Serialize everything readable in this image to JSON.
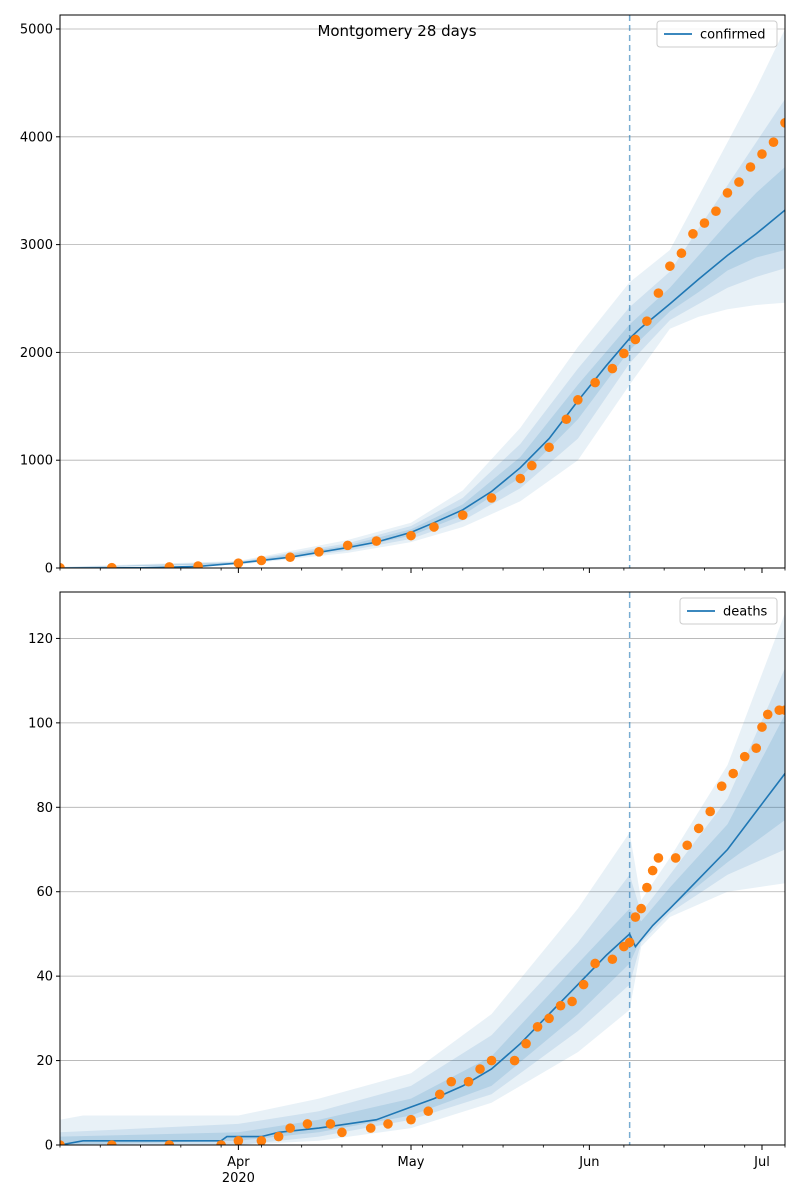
{
  "chart_data": [
    {
      "type": "line",
      "title": "Montgomery 28 days",
      "x_range": [
        "2020-03-01",
        "2020-07-05"
      ],
      "ylim": [
        0,
        5130
      ],
      "yticks": [
        0,
        1000,
        2000,
        3000,
        4000,
        5000
      ],
      "ytick_labels": [
        "0",
        "1000",
        "2000",
        "3000",
        "4000",
        "5000"
      ],
      "grid": "horizontal",
      "legend_position": "top-right",
      "forecast_start": "2020-06-08",
      "series": [
        {
          "name": "confirmed",
          "color": "#1f77b4",
          "kind": "model-line",
          "points": [
            [
              "2020-03-01",
              0
            ],
            [
              "2020-03-15",
              2
            ],
            [
              "2020-03-25",
              15
            ],
            [
              "2020-04-01",
              45
            ],
            [
              "2020-04-10",
              100
            ],
            [
              "2020-04-20",
              190
            ],
            [
              "2020-04-25",
              240
            ],
            [
              "2020-05-01",
              330
            ],
            [
              "2020-05-05",
              420
            ],
            [
              "2020-05-10",
              540
            ],
            [
              "2020-05-15",
              710
            ],
            [
              "2020-05-20",
              930
            ],
            [
              "2020-05-25",
              1200
            ],
            [
              "2020-05-30",
              1550
            ],
            [
              "2020-06-04",
              1880
            ],
            [
              "2020-06-08",
              2130
            ],
            [
              "2020-06-10",
              2230
            ],
            [
              "2020-06-15",
              2450
            ],
            [
              "2020-06-20",
              2680
            ],
            [
              "2020-06-25",
              2900
            ],
            [
              "2020-06-30",
              3100
            ],
            [
              "2020-07-05",
              3320
            ]
          ]
        },
        {
          "name": "",
          "color": "#ff7f0e",
          "kind": "observed-points",
          "points": [
            [
              "2020-03-01",
              2
            ],
            [
              "2020-03-10",
              3
            ],
            [
              "2020-03-20",
              10
            ],
            [
              "2020-03-25",
              18
            ],
            [
              "2020-04-01",
              45
            ],
            [
              "2020-04-05",
              70
            ],
            [
              "2020-04-10",
              100
            ],
            [
              "2020-04-15",
              150
            ],
            [
              "2020-04-20",
              210
            ],
            [
              "2020-04-25",
              250
            ],
            [
              "2020-05-01",
              300
            ],
            [
              "2020-05-05",
              380
            ],
            [
              "2020-05-10",
              490
            ],
            [
              "2020-05-15",
              650
            ],
            [
              "2020-05-20",
              830
            ],
            [
              "2020-05-22",
              950
            ],
            [
              "2020-05-25",
              1120
            ],
            [
              "2020-05-28",
              1380
            ],
            [
              "2020-05-30",
              1560
            ],
            [
              "2020-06-02",
              1720
            ],
            [
              "2020-06-05",
              1850
            ],
            [
              "2020-06-07",
              1990
            ],
            [
              "2020-06-09",
              2120
            ],
            [
              "2020-06-11",
              2290
            ],
            [
              "2020-06-13",
              2550
            ],
            [
              "2020-06-15",
              2800
            ],
            [
              "2020-06-17",
              2920
            ],
            [
              "2020-06-19",
              3100
            ],
            [
              "2020-06-21",
              3200
            ],
            [
              "2020-06-23",
              3310
            ],
            [
              "2020-06-25",
              3480
            ],
            [
              "2020-06-27",
              3580
            ],
            [
              "2020-06-29",
              3720
            ],
            [
              "2020-07-01",
              3840
            ],
            [
              "2020-07-03",
              3950
            ],
            [
              "2020-07-05",
              4130
            ]
          ]
        }
      ],
      "bands": [
        {
          "level": "outer",
          "opacity": 0.1,
          "points": [
            [
              "2020-03-01",
              0,
              10
            ],
            [
              "2020-04-01",
              30,
              65
            ],
            [
              "2020-04-20",
              140,
              260
            ],
            [
              "2020-05-01",
              240,
              420
            ],
            [
              "2020-05-10",
              380,
              720
            ],
            [
              "2020-05-20",
              620,
              1300
            ],
            [
              "2020-05-30",
              1000,
              2050
            ],
            [
              "2020-06-08",
              1700,
              2650
            ],
            [
              "2020-06-15",
              2220,
              2950
            ],
            [
              "2020-06-20",
              2330,
              3450
            ],
            [
              "2020-06-25",
              2400,
              3950
            ],
            [
              "2020-06-30",
              2440,
              4450
            ],
            [
              "2020-07-05",
              2460,
              5000
            ]
          ]
        },
        {
          "level": "middle",
          "opacity": 0.12,
          "points": [
            [
              "2020-03-01",
              0,
              6
            ],
            [
              "2020-04-01",
              35,
              58
            ],
            [
              "2020-04-20",
              160,
              230
            ],
            [
              "2020-05-01",
              270,
              390
            ],
            [
              "2020-05-10",
              440,
              650
            ],
            [
              "2020-05-20",
              740,
              1150
            ],
            [
              "2020-05-30",
              1200,
              1850
            ],
            [
              "2020-06-08",
              1900,
              2420
            ],
            [
              "2020-06-15",
              2300,
              2750
            ],
            [
              "2020-06-20",
              2450,
              3150
            ],
            [
              "2020-06-25",
              2600,
              3550
            ],
            [
              "2020-06-30",
              2700,
              3950
            ],
            [
              "2020-07-05",
              2780,
              4350
            ]
          ]
        },
        {
          "level": "inner",
          "opacity": 0.14,
          "points": [
            [
              "2020-03-01",
              0,
              4
            ],
            [
              "2020-04-01",
              40,
              52
            ],
            [
              "2020-04-20",
              175,
              210
            ],
            [
              "2020-05-01",
              300,
              360
            ],
            [
              "2020-05-10",
              490,
              590
            ],
            [
              "2020-05-20",
              840,
              1030
            ],
            [
              "2020-05-30",
              1380,
              1700
            ],
            [
              "2020-06-08",
              2020,
              2260
            ],
            [
              "2020-06-15",
              2380,
              2600
            ],
            [
              "2020-06-20",
              2560,
              2900
            ],
            [
              "2020-06-25",
              2760,
              3200
            ],
            [
              "2020-06-30",
              2880,
              3480
            ],
            [
              "2020-07-05",
              2950,
              3720
            ]
          ]
        }
      ]
    },
    {
      "type": "line",
      "title": "",
      "x_range": [
        "2020-03-01",
        "2020-07-05"
      ],
      "ylim": [
        0,
        131
      ],
      "yticks": [
        0,
        20,
        40,
        60,
        80,
        100,
        120
      ],
      "ytick_labels": [
        "0",
        "20",
        "40",
        "60",
        "80",
        "100",
        "120"
      ],
      "xticks": [
        "2020-04-01",
        "2020-05-01",
        "2020-06-01",
        "2020-07-01"
      ],
      "xtick_labels": [
        "Apr",
        "May",
        "Jun",
        "Jul"
      ],
      "xtick_year_label": "2020",
      "grid": "horizontal",
      "legend_position": "top-right",
      "forecast_start": "2020-06-08",
      "series": [
        {
          "name": "deaths",
          "color": "#1f77b4",
          "kind": "model-line",
          "points": [
            [
              "2020-03-01",
              0
            ],
            [
              "2020-03-05",
              1
            ],
            [
              "2020-03-29",
              1
            ],
            [
              "2020-03-30",
              2
            ],
            [
              "2020-04-05",
              2
            ],
            [
              "2020-04-08",
              3
            ],
            [
              "2020-04-15",
              4
            ],
            [
              "2020-04-20",
              5
            ],
            [
              "2020-04-25",
              6
            ],
            [
              "2020-05-01",
              9
            ],
            [
              "2020-05-05",
              11
            ],
            [
              "2020-05-10",
              14
            ],
            [
              "2020-05-15",
              18
            ],
            [
              "2020-05-20",
              24
            ],
            [
              "2020-05-25",
              31
            ],
            [
              "2020-05-30",
              38
            ],
            [
              "2020-06-04",
              45
            ],
            [
              "2020-06-08",
              50
            ],
            [
              "2020-06-09",
              47
            ],
            [
              "2020-06-12",
              52
            ],
            [
              "2020-06-15",
              56
            ],
            [
              "2020-06-20",
              63
            ],
            [
              "2020-06-25",
              70
            ],
            [
              "2020-06-30",
              79
            ],
            [
              "2020-07-05",
              88
            ]
          ]
        },
        {
          "name": "",
          "color": "#ff7f0e",
          "kind": "observed-points",
          "points": [
            [
              "2020-03-01",
              0
            ],
            [
              "2020-03-10",
              0
            ],
            [
              "2020-03-20",
              0
            ],
            [
              "2020-03-29",
              0
            ],
            [
              "2020-04-01",
              1
            ],
            [
              "2020-04-05",
              1
            ],
            [
              "2020-04-08",
              2
            ],
            [
              "2020-04-10",
              4
            ],
            [
              "2020-04-13",
              5
            ],
            [
              "2020-04-17",
              5
            ],
            [
              "2020-04-19",
              3
            ],
            [
              "2020-04-24",
              4
            ],
            [
              "2020-04-27",
              5
            ],
            [
              "2020-05-01",
              6
            ],
            [
              "2020-05-04",
              8
            ],
            [
              "2020-05-06",
              12
            ],
            [
              "2020-05-08",
              15
            ],
            [
              "2020-05-11",
              15
            ],
            [
              "2020-05-13",
              18
            ],
            [
              "2020-05-15",
              20
            ],
            [
              "2020-05-19",
              20
            ],
            [
              "2020-05-21",
              24
            ],
            [
              "2020-05-23",
              28
            ],
            [
              "2020-05-25",
              30
            ],
            [
              "2020-05-27",
              33
            ],
            [
              "2020-05-29",
              34
            ],
            [
              "2020-05-31",
              38
            ],
            [
              "2020-06-02",
              43
            ],
            [
              "2020-06-05",
              44
            ],
            [
              "2020-06-07",
              47
            ],
            [
              "2020-06-08",
              48
            ],
            [
              "2020-06-09",
              54
            ],
            [
              "2020-06-10",
              56
            ],
            [
              "2020-06-11",
              61
            ],
            [
              "2020-06-12",
              65
            ],
            [
              "2020-06-13",
              68
            ],
            [
              "2020-06-16",
              68
            ],
            [
              "2020-06-18",
              71
            ],
            [
              "2020-06-20",
              75
            ],
            [
              "2020-06-22",
              79
            ],
            [
              "2020-06-24",
              85
            ],
            [
              "2020-06-26",
              88
            ],
            [
              "2020-06-28",
              92
            ],
            [
              "2020-06-30",
              94
            ],
            [
              "2020-07-01",
              99
            ],
            [
              "2020-07-02",
              102
            ],
            [
              "2020-07-04",
              103
            ],
            [
              "2020-07-05",
              103
            ]
          ]
        }
      ],
      "bands": [
        {
          "level": "outer",
          "opacity": 0.1,
          "points": [
            [
              "2020-03-01",
              0,
              6
            ],
            [
              "2020-03-05",
              0,
              7
            ],
            [
              "2020-04-01",
              0,
              7
            ],
            [
              "2020-04-15",
              1,
              11
            ],
            [
              "2020-05-01",
              4,
              17
            ],
            [
              "2020-05-15",
              10,
              31
            ],
            [
              "2020-05-30",
              22,
              56
            ],
            [
              "2020-06-08",
              32,
              74
            ],
            [
              "2020-06-10",
              47,
              58
            ],
            [
              "2020-06-15",
              54,
              68
            ],
            [
              "2020-06-25",
              60,
              90
            ],
            [
              "2020-07-05",
              62,
              126
            ]
          ]
        },
        {
          "level": "middle",
          "opacity": 0.12,
          "points": [
            [
              "2020-03-01",
              0,
              3
            ],
            [
              "2020-04-01",
              0,
              5
            ],
            [
              "2020-04-15",
              2,
              8
            ],
            [
              "2020-05-01",
              6,
              14
            ],
            [
              "2020-05-15",
              12,
              26
            ],
            [
              "2020-05-30",
              27,
              48
            ],
            [
              "2020-06-08",
              38,
              64
            ],
            [
              "2020-06-10",
              48,
              55
            ],
            [
              "2020-06-15",
              55,
              64
            ],
            [
              "2020-06-25",
              64,
              82
            ],
            [
              "2020-07-05",
              70,
              113
            ]
          ]
        },
        {
          "level": "inner",
          "opacity": 0.14,
          "points": [
            [
              "2020-03-01",
              0,
              2
            ],
            [
              "2020-04-01",
              1,
              3
            ],
            [
              "2020-04-15",
              3,
              6
            ],
            [
              "2020-05-01",
              7,
              11
            ],
            [
              "2020-05-15",
              14,
              21
            ],
            [
              "2020-05-30",
              31,
              43
            ],
            [
              "2020-06-08",
              43,
              56
            ],
            [
              "2020-06-10",
              49,
              53
            ],
            [
              "2020-06-15",
              56,
              61
            ],
            [
              "2020-06-25",
              67,
              76
            ],
            [
              "2020-07-05",
              77,
              102
            ]
          ]
        }
      ]
    }
  ]
}
